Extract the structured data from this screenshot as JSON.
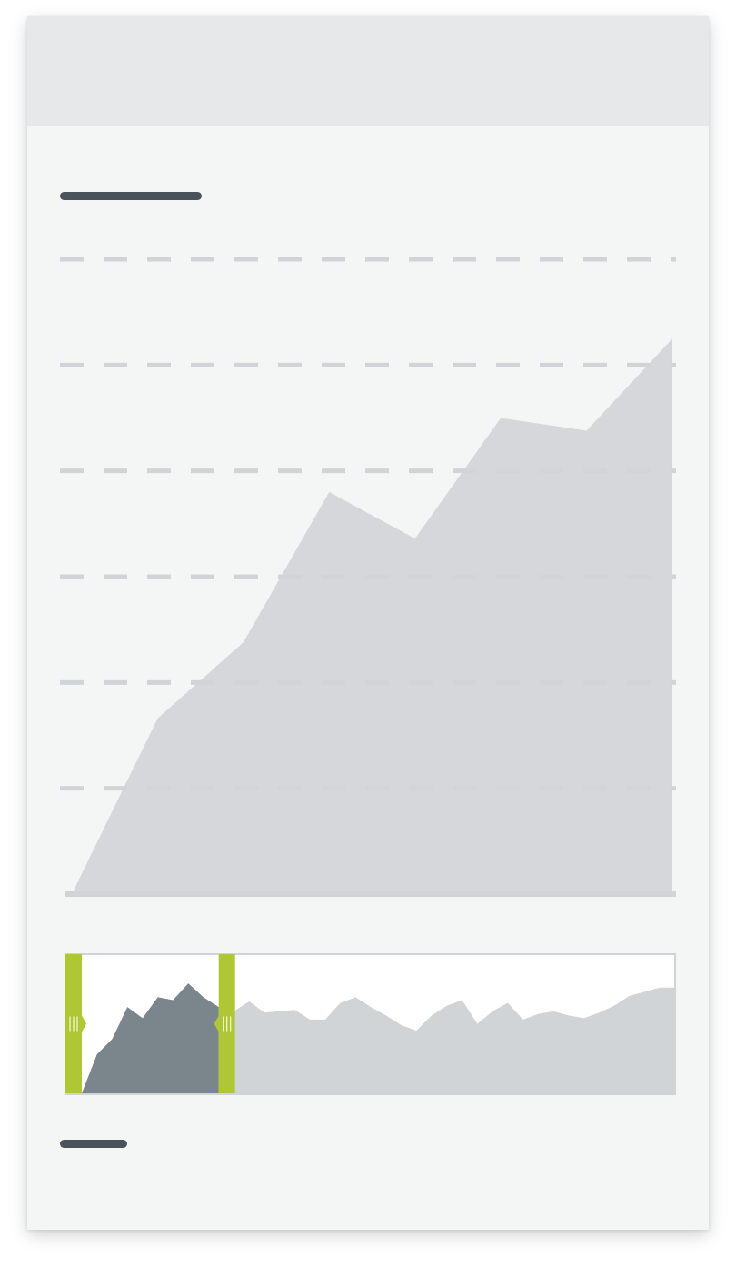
{
  "colors": {
    "card_background": "#f4f5f5",
    "header_background": "#e7e8e9",
    "placeholder_text": "#4b535a",
    "area_fill": "#d1d4d7",
    "gridline": "#d1d4d7",
    "navigator_selected_fill": "#7b868c",
    "navigator_handle": "#afc734",
    "navigator_border": "#d1d4d7"
  },
  "chart_data": [
    {
      "type": "area",
      "x": [
        0,
        1,
        2,
        3,
        4,
        5,
        6,
        7
      ],
      "values": [
        0,
        1.66,
        2.38,
        3.8,
        3.36,
        4.5,
        4.38,
        5.25
      ],
      "ylim": [
        0,
        6
      ],
      "grid": true,
      "grid_style": "dashed",
      "legend": "none"
    },
    {
      "type": "area",
      "role": "range-navigator",
      "x": [
        0,
        1,
        2,
        3,
        4,
        5,
        6,
        7,
        8,
        9,
        10,
        11,
        12,
        13,
        14,
        15,
        16,
        17,
        18,
        19,
        20,
        21,
        22,
        23,
        24,
        25,
        26,
        27,
        28,
        29,
        30,
        31,
        32,
        33,
        34,
        35,
        36,
        37,
        38,
        39
      ],
      "values": [
        0,
        0.28,
        0.39,
        0.62,
        0.54,
        0.69,
        0.67,
        0.79,
        0.69,
        0.62,
        0.59,
        0.66,
        0.58,
        0.59,
        0.6,
        0.53,
        0.53,
        0.65,
        0.69,
        0.62,
        0.56,
        0.49,
        0.45,
        0.56,
        0.63,
        0.67,
        0.5,
        0.59,
        0.65,
        0.53,
        0.57,
        0.59,
        0.56,
        0.54,
        0.58,
        0.63,
        0.7,
        0.73,
        0.76,
        0.76
      ],
      "ylim": [
        0,
        1
      ],
      "selected_range": [
        0,
        9
      ]
    }
  ]
}
